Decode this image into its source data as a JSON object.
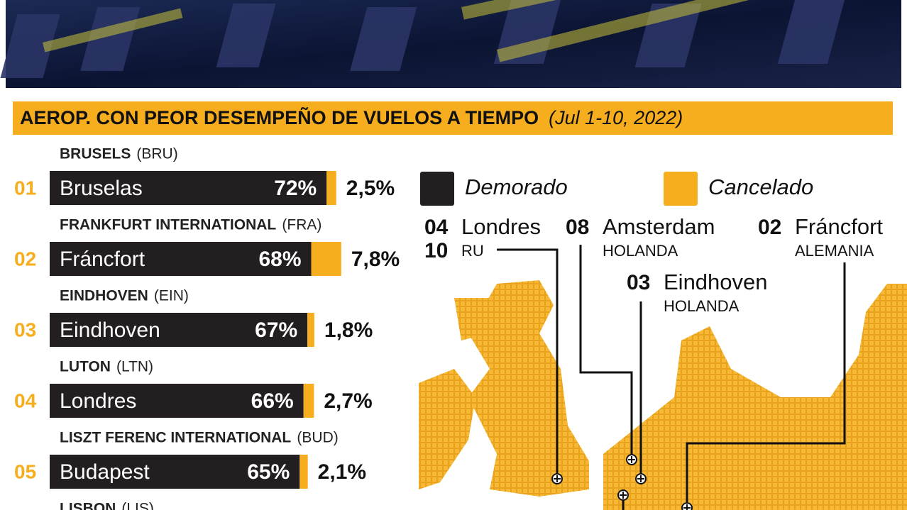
{
  "chart_data": {
    "type": "bar",
    "title": "AEROP. CON PEOR DESEMPEÑO DE VUELOS A TIEMPO",
    "subtitle": "(Jul 1-10, 2022)",
    "ranks": [
      "01",
      "02",
      "03",
      "04",
      "05"
    ],
    "airports": [
      "BRUSELS",
      "FRANKFURT INTERNATIONAL",
      "EINDHOVEN",
      "LUTON",
      "LISZT FERENC INTERNATIONAL"
    ],
    "codes": [
      "(BRU)",
      "(FRA)",
      "(EIN)",
      "(LTN)",
      "(BUD)"
    ],
    "categories": [
      "Bruselas",
      "Fráncfort",
      "Eindhoven",
      "Londres",
      "Budapest"
    ],
    "series": [
      {
        "name": "Demorado",
        "color": "#231f20",
        "values": [
          72,
          68,
          67,
          66,
          65
        ],
        "value_labels": [
          "72%",
          "68%",
          "67%",
          "66%",
          "65%"
        ]
      },
      {
        "name": "Cancelado",
        "color": "#f6ad1e",
        "values": [
          2.5,
          7.8,
          1.8,
          2.7,
          2.1
        ],
        "value_labels": [
          "2,5%",
          "7,8%",
          "1,8%",
          "2,7%",
          "2,1%"
        ]
      }
    ],
    "next_airport": "LISBON",
    "next_code": "(LIS)",
    "map_labels": [
      {
        "rank": "04",
        "city": "Londres",
        "rank2": "10",
        "country": "RU"
      },
      {
        "rank": "08",
        "city": "Amsterdam",
        "country": "HOLANDA"
      },
      {
        "rank": "02",
        "city": "Fráncfort",
        "country": "ALEMANIA"
      },
      {
        "rank": "03",
        "city": "Eindhoven",
        "country": "HOLANDA"
      }
    ]
  }
}
